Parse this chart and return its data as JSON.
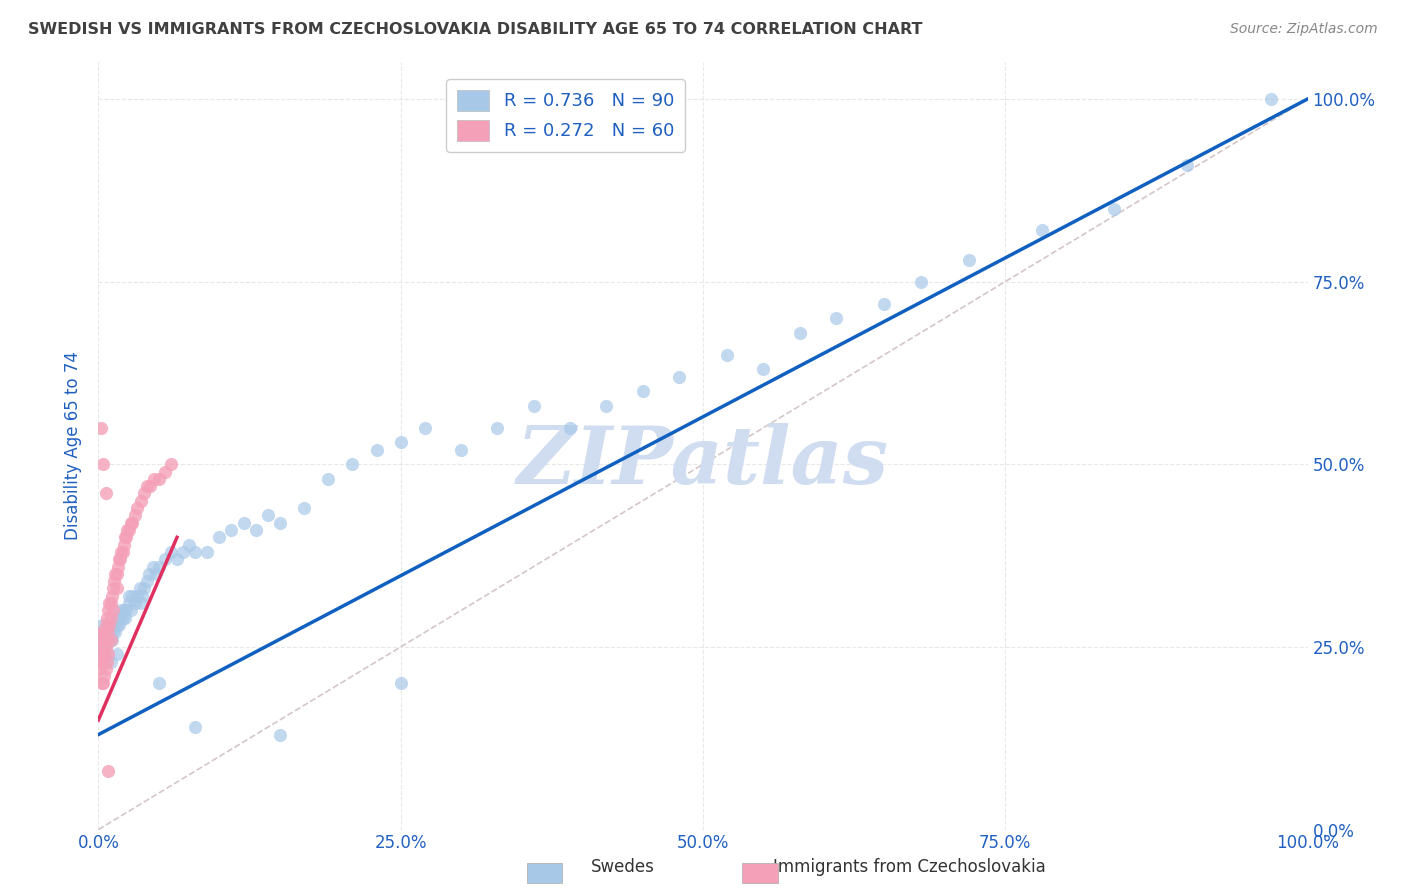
{
  "title": "SWEDISH VS IMMIGRANTS FROM CZECHOSLOVAKIA DISABILITY AGE 65 TO 74 CORRELATION CHART",
  "source": "Source: ZipAtlas.com",
  "ylabel": "Disability Age 65 to 74",
  "swedes_R": 0.736,
  "swedes_N": 90,
  "immigrants_R": 0.272,
  "immigrants_N": 60,
  "legend_label1": "Swedes",
  "legend_label2": "Immigrants from Czechoslovakia",
  "blue_scatter": "#a8c8e8",
  "pink_scatter": "#f4a0b8",
  "line_blue": "#1060c0",
  "line_pink": "#e03060",
  "line_diag_color": "#d0c0c0",
  "watermark": "ZIPatlas",
  "watermark_color": "#d0ddf0",
  "title_color": "#404040",
  "source_color": "#888888",
  "axis_color": "#2060c0",
  "background_color": "#ffffff",
  "grid_color": "#e8e8e8",
  "tick_vals": [
    0.0,
    0.25,
    0.5,
    0.75,
    1.0
  ],
  "tick_labels": [
    "0.0%",
    "25.0%",
    "50.0%",
    "75.0%",
    "100.0%"
  ],
  "xlim": [
    0.0,
    1.0
  ],
  "ylim": [
    0.0,
    1.05
  ],
  "swedes_x": [
    0.001,
    0.002,
    0.003,
    0.003,
    0.004,
    0.004,
    0.005,
    0.005,
    0.006,
    0.006,
    0.007,
    0.007,
    0.008,
    0.008,
    0.009,
    0.009,
    0.01,
    0.01,
    0.011,
    0.012,
    0.013,
    0.014,
    0.015,
    0.016,
    0.017,
    0.018,
    0.019,
    0.02,
    0.021,
    0.022,
    0.023,
    0.025,
    0.027,
    0.028,
    0.03,
    0.032,
    0.034,
    0.036,
    0.038,
    0.04,
    0.042,
    0.045,
    0.048,
    0.05,
    0.055,
    0.06,
    0.065,
    0.07,
    0.075,
    0.08,
    0.09,
    0.1,
    0.11,
    0.12,
    0.13,
    0.14,
    0.15,
    0.17,
    0.19,
    0.21,
    0.23,
    0.25,
    0.27,
    0.3,
    0.33,
    0.36,
    0.39,
    0.42,
    0.45,
    0.48,
    0.52,
    0.55,
    0.58,
    0.61,
    0.65,
    0.68,
    0.72,
    0.78,
    0.84,
    0.9,
    0.005,
    0.01,
    0.015,
    0.025,
    0.035,
    0.05,
    0.08,
    0.15,
    0.25,
    0.97
  ],
  "swedes_y": [
    0.27,
    0.26,
    0.28,
    0.25,
    0.26,
    0.24,
    0.26,
    0.27,
    0.25,
    0.27,
    0.26,
    0.27,
    0.26,
    0.28,
    0.27,
    0.26,
    0.27,
    0.28,
    0.26,
    0.27,
    0.28,
    0.27,
    0.28,
    0.29,
    0.28,
    0.29,
    0.3,
    0.29,
    0.3,
    0.29,
    0.3,
    0.31,
    0.3,
    0.32,
    0.31,
    0.32,
    0.33,
    0.32,
    0.33,
    0.34,
    0.35,
    0.36,
    0.35,
    0.36,
    0.37,
    0.38,
    0.37,
    0.38,
    0.39,
    0.38,
    0.38,
    0.4,
    0.41,
    0.42,
    0.41,
    0.43,
    0.42,
    0.44,
    0.48,
    0.5,
    0.52,
    0.53,
    0.55,
    0.52,
    0.55,
    0.58,
    0.55,
    0.58,
    0.6,
    0.62,
    0.65,
    0.63,
    0.68,
    0.7,
    0.72,
    0.75,
    0.78,
    0.82,
    0.85,
    0.91,
    0.24,
    0.23,
    0.24,
    0.32,
    0.31,
    0.2,
    0.14,
    0.13,
    0.2,
    1.0
  ],
  "immigrants_x": [
    0.001,
    0.001,
    0.002,
    0.002,
    0.003,
    0.003,
    0.003,
    0.004,
    0.004,
    0.004,
    0.005,
    0.005,
    0.005,
    0.006,
    0.006,
    0.006,
    0.007,
    0.007,
    0.007,
    0.008,
    0.008,
    0.008,
    0.009,
    0.009,
    0.01,
    0.01,
    0.01,
    0.011,
    0.012,
    0.012,
    0.013,
    0.014,
    0.015,
    0.015,
    0.016,
    0.017,
    0.018,
    0.019,
    0.02,
    0.021,
    0.022,
    0.023,
    0.024,
    0.025,
    0.027,
    0.028,
    0.03,
    0.032,
    0.035,
    0.038,
    0.04,
    0.043,
    0.046,
    0.05,
    0.055,
    0.06,
    0.002,
    0.004,
    0.006,
    0.008
  ],
  "immigrants_y": [
    0.25,
    0.22,
    0.26,
    0.23,
    0.27,
    0.24,
    0.2,
    0.26,
    0.23,
    0.2,
    0.27,
    0.24,
    0.21,
    0.28,
    0.25,
    0.22,
    0.29,
    0.26,
    0.23,
    0.3,
    0.27,
    0.24,
    0.31,
    0.28,
    0.31,
    0.29,
    0.26,
    0.32,
    0.33,
    0.3,
    0.34,
    0.35,
    0.35,
    0.33,
    0.36,
    0.37,
    0.37,
    0.38,
    0.38,
    0.39,
    0.4,
    0.4,
    0.41,
    0.41,
    0.42,
    0.42,
    0.43,
    0.44,
    0.45,
    0.46,
    0.47,
    0.47,
    0.48,
    0.48,
    0.49,
    0.5,
    0.55,
    0.5,
    0.46,
    0.08
  ]
}
